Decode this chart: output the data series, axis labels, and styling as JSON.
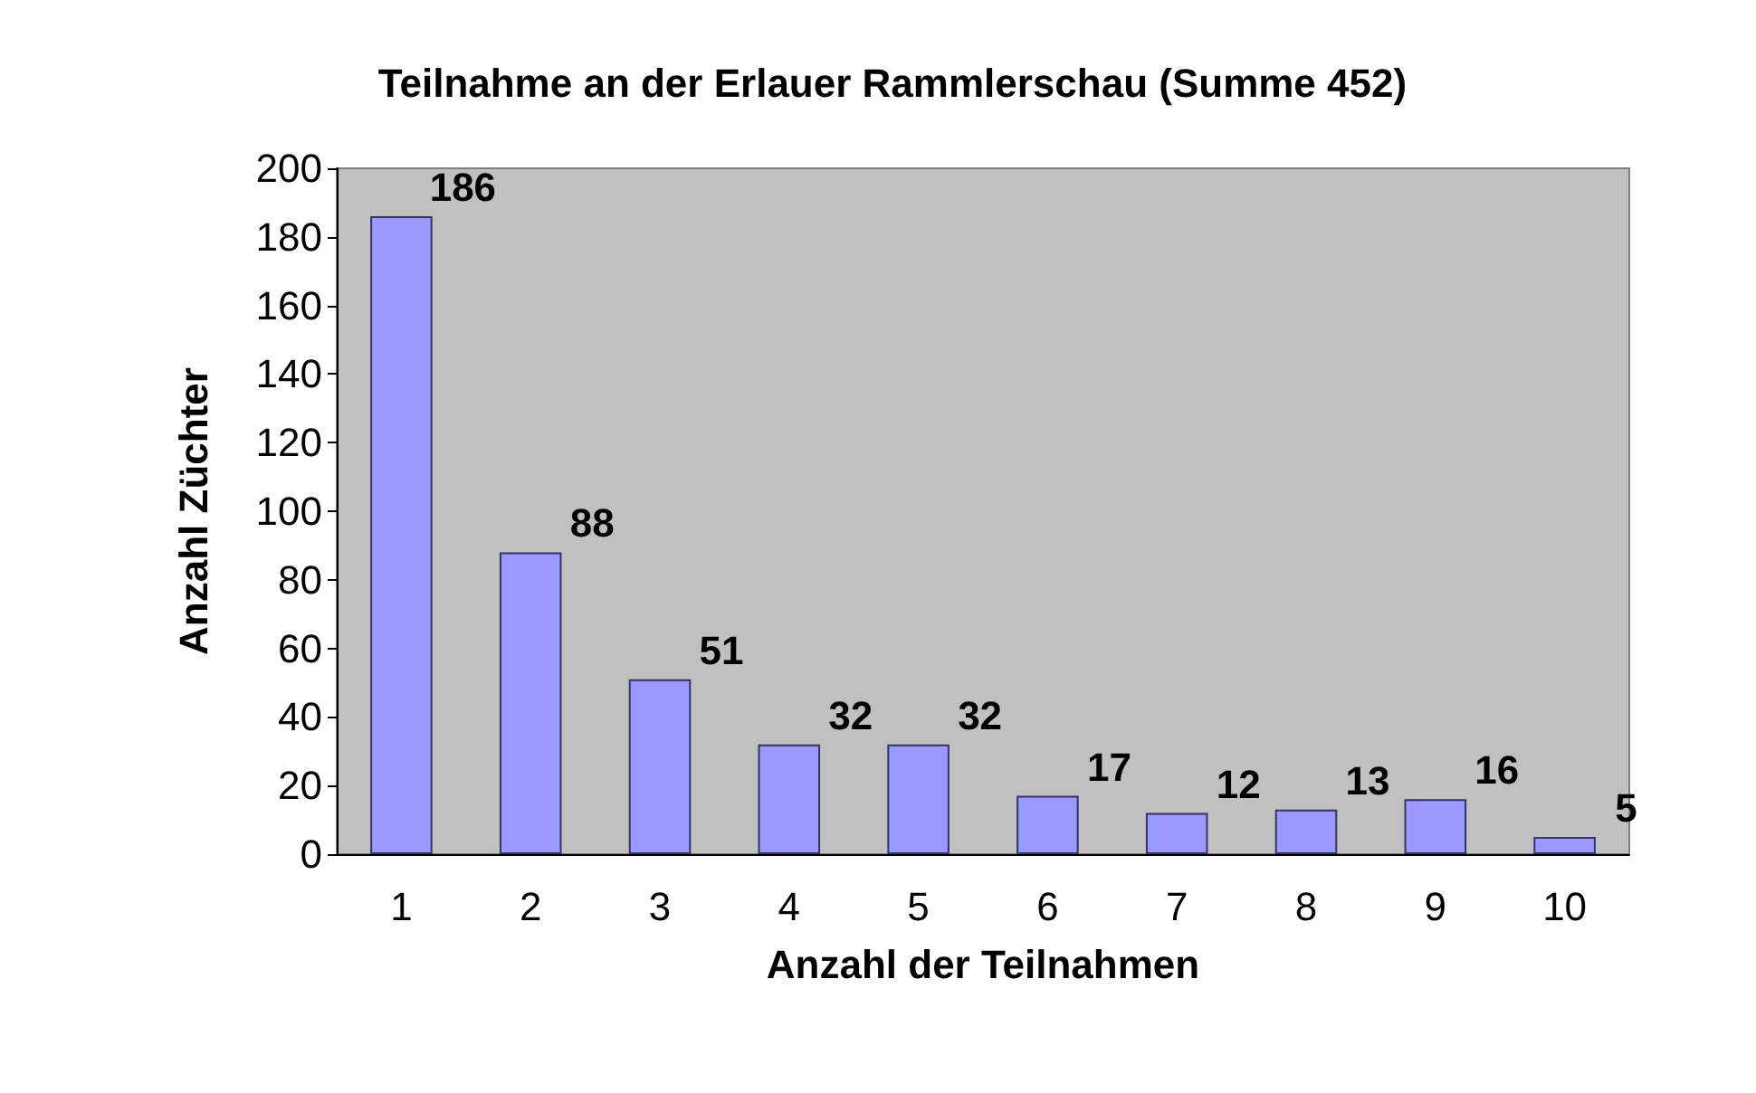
{
  "chart_data": {
    "type": "bar",
    "title": "Teilnahme an der Erlauer Rammlerschau (Summe 452)",
    "xlabel": "Anzahl der Teilnahmen",
    "ylabel": "Anzahl Züchter",
    "categories": [
      "1",
      "2",
      "3",
      "4",
      "5",
      "6",
      "7",
      "8",
      "9",
      "10"
    ],
    "values": [
      186,
      88,
      51,
      32,
      32,
      17,
      12,
      13,
      16,
      5
    ],
    "color": "#9999ff",
    "ylim": [
      0,
      200
    ],
    "yticks": [
      0,
      20,
      40,
      60,
      80,
      100,
      120,
      140,
      160,
      180,
      200
    ],
    "grid": false,
    "data_labels": true
  }
}
